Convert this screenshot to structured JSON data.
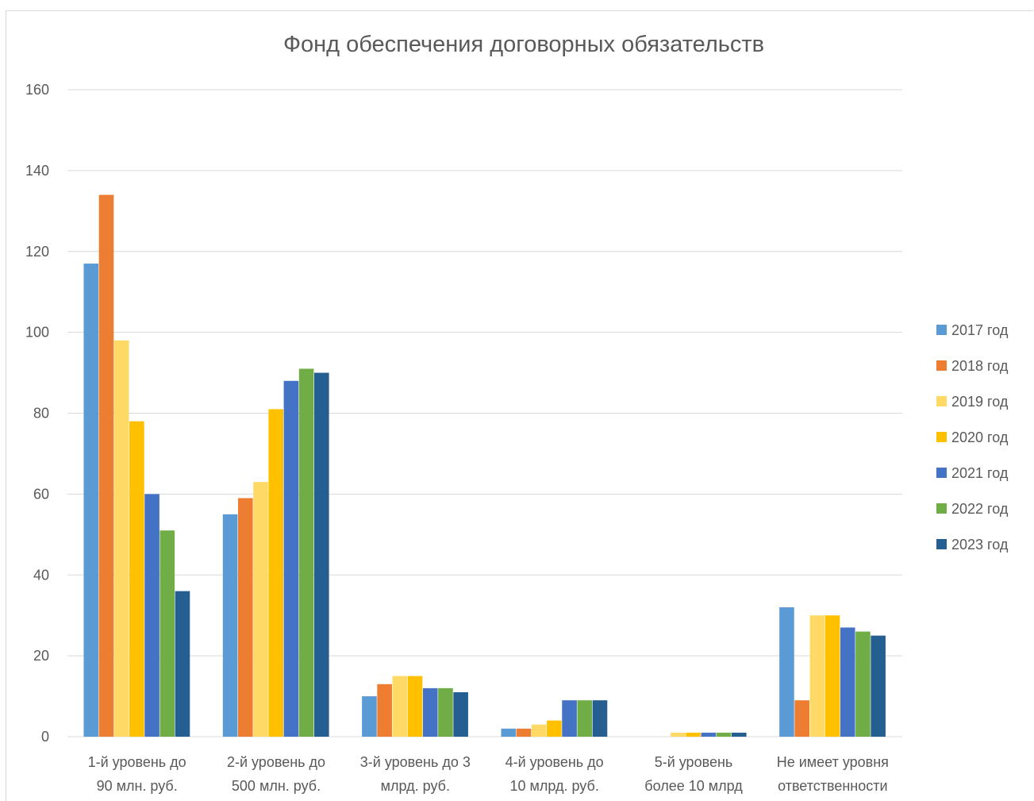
{
  "chart_data": {
    "type": "bar",
    "title": "Фонд обеспечения договорных обязательств",
    "categories": [
      [
        "1-й уровень до",
        "90 млн. руб."
      ],
      [
        "2-й уровень до",
        "500 млн. руб."
      ],
      [
        "3-й уровень до 3",
        "млрд. руб."
      ],
      [
        "4-й уровень до",
        "10 млрд. руб."
      ],
      [
        "5-й уровень",
        "более 10 млрд"
      ],
      [
        "Не имеет уровня",
        "ответственности"
      ]
    ],
    "series": [
      {
        "name": "2017 год",
        "color": "#5b9bd5",
        "values": [
          117,
          55,
          10,
          2,
          0,
          32
        ]
      },
      {
        "name": "2018 год",
        "color": "#ed7d31",
        "values": [
          134,
          59,
          13,
          2,
          0,
          9
        ]
      },
      {
        "name": "2019 год",
        "color": "#ffd966",
        "values": [
          98,
          63,
          15,
          3,
          1,
          30
        ]
      },
      {
        "name": "2020 год",
        "color": "#ffc000",
        "values": [
          78,
          81,
          15,
          4,
          1,
          30
        ]
      },
      {
        "name": "2021 год",
        "color": "#4472c4",
        "values": [
          60,
          88,
          12,
          9,
          1,
          27
        ]
      },
      {
        "name": "2022 год",
        "color": "#70ad47",
        "values": [
          51,
          91,
          12,
          9,
          1,
          26
        ]
      },
      {
        "name": "2023 год",
        "color": "#255e91",
        "values": [
          36,
          90,
          11,
          9,
          1,
          25
        ]
      }
    ],
    "yticks": [
      0,
      20,
      40,
      60,
      80,
      100,
      120,
      140,
      160
    ],
    "ylim": [
      0,
      160
    ],
    "xlabel": "",
    "ylabel": "",
    "grid": true,
    "legend": "right"
  }
}
